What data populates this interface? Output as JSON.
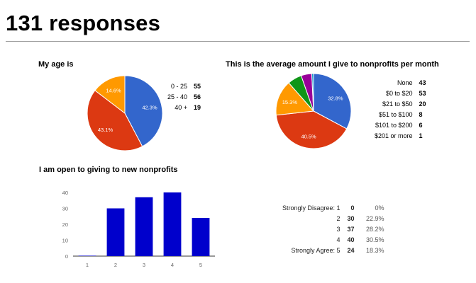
{
  "heading": "131 responses",
  "chart_data": [
    {
      "type": "pie",
      "title": "My age is",
      "categories": [
        "0 - 25",
        "25 - 40",
        "40 +"
      ],
      "values": [
        55,
        56,
        19
      ],
      "labels": [
        "42.3%",
        "43.1%",
        "14.6%"
      ],
      "colors": [
        "#3366cc",
        "#dc3912",
        "#ff9900"
      ],
      "legend": "right"
    },
    {
      "type": "pie",
      "title": "This is the average amount I give to nonprofits per month",
      "categories": [
        "None",
        "$0 to $20",
        "$21 to $50",
        "$51 to $100",
        "$101 to $200",
        "$201 or more"
      ],
      "values": [
        43,
        53,
        20,
        8,
        6,
        1
      ],
      "labels": [
        "32.8%",
        "40.5%",
        "15.3%",
        "",
        "",
        ""
      ],
      "colors": [
        "#3366cc",
        "#dc3912",
        "#ff9900",
        "#109618",
        "#990099",
        "#0099c6"
      ],
      "legend": "right"
    },
    {
      "type": "bar",
      "title": "I am open to giving to new nonprofits",
      "categories": [
        "1",
        "2",
        "3",
        "4",
        "5"
      ],
      "values": [
        0,
        30,
        37,
        40,
        24
      ],
      "ylim": [
        0,
        40
      ],
      "yticks": [
        "0",
        "10",
        "20",
        "30",
        "40"
      ],
      "grid": false,
      "color": "#0000cc"
    }
  ],
  "summary_table": {
    "rows": [
      {
        "label": "Strongly Disagree: 1",
        "count": "0",
        "percent": "0%"
      },
      {
        "label": "2",
        "count": "30",
        "percent": "22.9%"
      },
      {
        "label": "3",
        "count": "37",
        "percent": "28.2%"
      },
      {
        "label": "4",
        "count": "40",
        "percent": "30.5%"
      },
      {
        "label": "Strongly Agree: 5",
        "count": "24",
        "percent": "18.3%"
      }
    ]
  }
}
